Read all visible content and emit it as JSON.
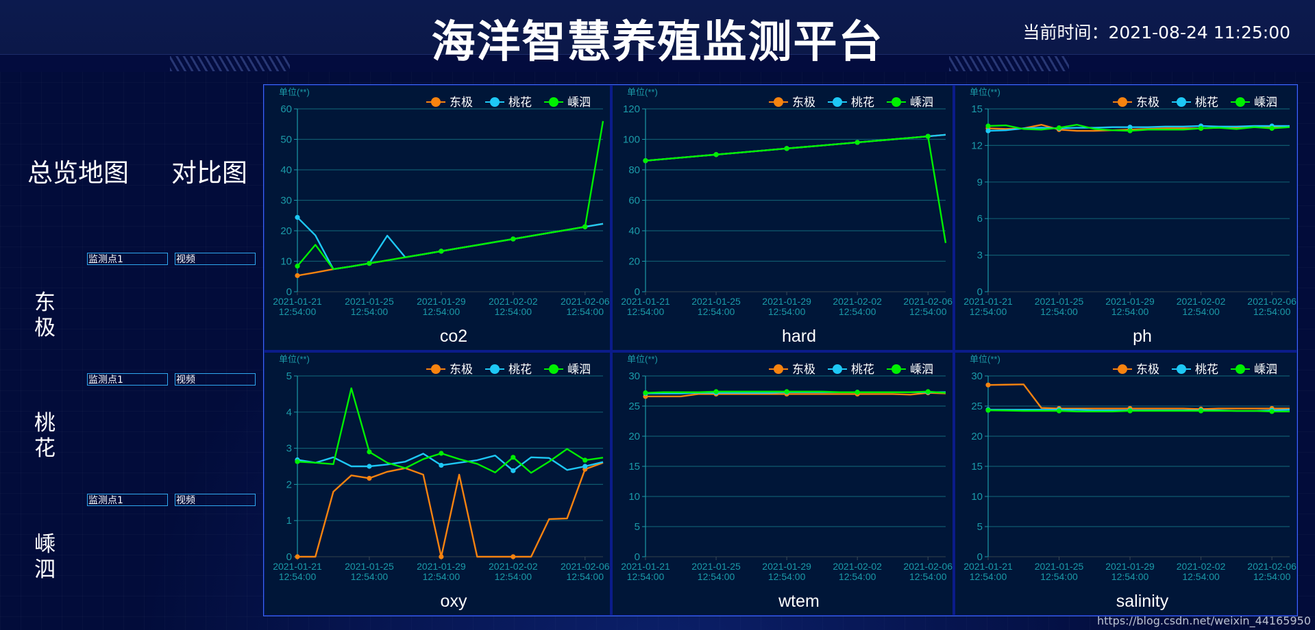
{
  "header": {
    "title": "海洋智慧养殖监测平台",
    "clock_label": "当前时间：",
    "clock_value": "2021-08-24 11:25:00"
  },
  "nav": {
    "map_label": "总览地图",
    "compare_label": "对比图"
  },
  "sites": [
    {
      "name": "东极",
      "point_label": "监测点1",
      "video_label": "视频"
    },
    {
      "name": "桃花",
      "point_label": "监测点1",
      "video_label": "视频"
    },
    {
      "name": "嵊泗",
      "point_label": "监测点1",
      "video_label": "视频"
    }
  ],
  "colors": {
    "东极": "#f7830f",
    "桃花": "#1ec8f5",
    "嵊泗": "#00f000",
    "axis_text": "#1b9aa8",
    "grid": "#0f5a6e",
    "panel_bg": "#001638",
    "frame_border": "#3d6cf0"
  },
  "watermark": "https://blog.csdn.net/weixin_44165950",
  "chart_data": [
    {
      "type": "line",
      "title": "co2",
      "unit_label": "单位(**)",
      "legend": [
        "东极",
        "桃花",
        "嵊泗"
      ],
      "legend_position": "top-right",
      "ylim": [
        0,
        60
      ],
      "yticks": [
        0,
        10,
        20,
        30,
        40,
        50,
        60
      ],
      "grid": true,
      "x_ticks": [
        "2021-01-21\n12:54:00",
        "2021-01-25\n12:54:00",
        "2021-01-29\n12:54:00",
        "2021-02-02\n12:54:00",
        "2021-02-06\n12:54:00"
      ],
      "x_tick_days": [
        0,
        4,
        8,
        12,
        16
      ],
      "x_days": 17,
      "series": [
        {
          "name": "东极",
          "values": [
            5.3,
            6.3,
            7.4,
            8.3,
            9.3,
            10.3,
            11.3,
            12.3,
            13.3,
            14.3,
            15.3,
            16.3,
            17.3,
            18.3,
            19.3,
            20.3,
            21.3,
            22.3
          ]
        },
        {
          "name": "桃花",
          "values": [
            24.4,
            18.5,
            7.4,
            8.3,
            9.3,
            18.4,
            11.3,
            12.3,
            13.3,
            14.3,
            15.3,
            16.3,
            17.3,
            18.3,
            19.3,
            20.3,
            21.3,
            22.3
          ]
        },
        {
          "name": "嵊泗",
          "values": [
            8.4,
            15.4,
            7.4,
            8.3,
            9.3,
            10.3,
            11.3,
            12.3,
            13.3,
            14.3,
            15.3,
            16.3,
            17.3,
            18.3,
            19.3,
            20.3,
            21.3,
            56
          ]
        }
      ]
    },
    {
      "type": "line",
      "title": "hard",
      "unit_label": "单位(**)",
      "legend": [
        "东极",
        "桃花",
        "嵊泗"
      ],
      "legend_position": "top-right",
      "ylim": [
        0,
        120
      ],
      "yticks": [
        0,
        20,
        40,
        60,
        80,
        100,
        120
      ],
      "grid": true,
      "x_ticks": [
        "2021-01-21\n12:54:00",
        "2021-01-25\n12:54:00",
        "2021-01-29\n12:54:00",
        "2021-02-02\n12:54:00",
        "2021-02-06\n12:54:00"
      ],
      "x_tick_days": [
        0,
        4,
        8,
        12,
        16
      ],
      "x_days": 17,
      "series": [
        {
          "name": "东极",
          "values": [
            86,
            87,
            88,
            89,
            90,
            91,
            92,
            93,
            94,
            95,
            96,
            97,
            98,
            99,
            100,
            101,
            102,
            103
          ]
        },
        {
          "name": "桃花",
          "values": [
            86,
            87,
            88,
            89,
            90,
            91,
            92,
            93,
            94,
            95,
            96,
            97,
            98,
            99,
            100,
            101,
            102,
            103
          ]
        },
        {
          "name": "嵊泗",
          "values": [
            86,
            87,
            88,
            89,
            90,
            91,
            92,
            93,
            94,
            95,
            96,
            97,
            98,
            99,
            100,
            101,
            102,
            32
          ]
        }
      ]
    },
    {
      "type": "line",
      "title": "ph",
      "unit_label": "单位(**)",
      "legend": [
        "东极",
        "桃花",
        "嵊泗"
      ],
      "legend_position": "top-right",
      "ylim": [
        0,
        15
      ],
      "yticks": [
        0,
        3,
        6,
        9,
        12,
        15
      ],
      "grid": true,
      "x_ticks": [
        "2021-01-21\n12:54:00",
        "2021-01-25\n12:54:00",
        "2021-01-29\n12:54:00",
        "2021-02-02\n12:54:00",
        "2021-02-06\n12:54:00"
      ],
      "x_tick_days": [
        0,
        4,
        8,
        12,
        16
      ],
      "x_days": 17,
      "series": [
        {
          "name": "东极",
          "values": [
            13.4,
            13.35,
            13.4,
            13.7,
            13.3,
            13.2,
            13.2,
            13.25,
            13.3,
            13.35,
            13.4,
            13.4,
            13.4,
            13.45,
            13.45,
            13.5,
            13.5,
            13.55
          ]
        },
        {
          "name": "桃花",
          "values": [
            13.2,
            13.25,
            13.4,
            13.45,
            13.4,
            13.45,
            13.45,
            13.5,
            13.5,
            13.5,
            13.55,
            13.55,
            13.6,
            13.55,
            13.55,
            13.6,
            13.6,
            13.6
          ]
        },
        {
          "name": "嵊泗",
          "values": [
            13.6,
            13.65,
            13.35,
            13.3,
            13.45,
            13.7,
            13.35,
            13.25,
            13.2,
            13.3,
            13.3,
            13.3,
            13.4,
            13.45,
            13.35,
            13.5,
            13.4,
            13.5
          ]
        }
      ]
    },
    {
      "type": "line",
      "title": "oxy",
      "unit_label": "单位(**)",
      "legend": [
        "东极",
        "桃花",
        "嵊泗"
      ],
      "legend_position": "top-right",
      "ylim": [
        0,
        5
      ],
      "yticks": [
        0,
        1,
        2,
        3,
        4,
        5
      ],
      "grid": true,
      "x_ticks": [
        "2021-01-21\n12:54:00",
        "2021-01-25\n12:54:00",
        "2021-01-29\n12:54:00",
        "2021-02-02\n12:54:00",
        "2021-02-06\n12:54:00"
      ],
      "x_tick_days": [
        0,
        4,
        8,
        12,
        16
      ],
      "x_days": 17,
      "series": [
        {
          "name": "东极",
          "values": [
            0,
            0,
            1.8,
            2.25,
            2.17,
            2.35,
            2.45,
            2.27,
            0,
            2.27,
            0,
            0,
            0,
            0,
            1.04,
            1.06,
            2.42,
            2.6
          ]
        },
        {
          "name": "桃花",
          "values": [
            2.68,
            2.6,
            2.75,
            2.5,
            2.5,
            2.55,
            2.63,
            2.85,
            2.53,
            2.6,
            2.67,
            2.8,
            2.38,
            2.75,
            2.73,
            2.4,
            2.5,
            2.62
          ]
        },
        {
          "name": "嵊泗",
          "values": [
            2.63,
            2.6,
            2.56,
            4.66,
            2.9,
            2.6,
            2.45,
            2.7,
            2.86,
            2.7,
            2.57,
            2.33,
            2.75,
            2.32,
            2.63,
            2.98,
            2.67,
            2.74
          ]
        }
      ]
    },
    {
      "type": "line",
      "title": "wtem",
      "unit_label": "单位(**)",
      "legend": [
        "东极",
        "桃花",
        "嵊泗"
      ],
      "legend_position": "top-right",
      "ylim": [
        0,
        30
      ],
      "yticks": [
        0,
        5,
        10,
        15,
        20,
        25,
        30
      ],
      "grid": true,
      "x_ticks": [
        "2021-01-21\n12:54:00",
        "2021-01-25\n12:54:00",
        "2021-01-29\n12:54:00",
        "2021-02-02\n12:54:00",
        "2021-02-06\n12:54:00"
      ],
      "x_tick_days": [
        0,
        4,
        8,
        12,
        16
      ],
      "x_days": 17,
      "series": [
        {
          "name": "东极",
          "values": [
            26.6,
            26.6,
            26.6,
            27.0,
            27.0,
            27.0,
            27.0,
            27.0,
            27.0,
            27.0,
            27.0,
            27.0,
            27.0,
            27.0,
            27.0,
            26.9,
            27.2,
            27.1
          ]
        },
        {
          "name": "桃花",
          "values": [
            27.1,
            27.1,
            27.1,
            27.2,
            27.2,
            27.2,
            27.2,
            27.2,
            27.3,
            27.3,
            27.3,
            27.3,
            27.3,
            27.3,
            27.3,
            27.3,
            27.3,
            27.3
          ]
        },
        {
          "name": "嵊泗",
          "values": [
            27.2,
            27.3,
            27.3,
            27.3,
            27.4,
            27.4,
            27.4,
            27.4,
            27.4,
            27.4,
            27.4,
            27.3,
            27.3,
            27.3,
            27.3,
            27.3,
            27.4,
            27.2
          ]
        }
      ]
    },
    {
      "type": "line",
      "title": "salinity",
      "unit_label": "单位(**)",
      "legend": [
        "东极",
        "桃花",
        "嵊泗"
      ],
      "legend_position": "top-right",
      "ylim": [
        0,
        30
      ],
      "yticks": [
        0,
        5,
        10,
        15,
        20,
        25,
        30
      ],
      "grid": true,
      "x_ticks": [
        "2021-01-21\n12:54:00",
        "2021-01-25\n12:54:00",
        "2021-01-29\n12:54:00",
        "2021-02-02\n12:54:00",
        "2021-02-06\n12:54:00"
      ],
      "x_tick_days": [
        0,
        4,
        8,
        12,
        16
      ],
      "x_days": 17,
      "series": [
        {
          "name": "东极",
          "values": [
            28.5,
            28.55,
            28.6,
            24.7,
            24.6,
            24.6,
            24.6,
            24.6,
            24.6,
            24.6,
            24.6,
            24.6,
            24.5,
            24.6,
            24.6,
            24.6,
            24.6,
            24.6
          ]
        },
        {
          "name": "桃花",
          "values": [
            24.4,
            24.4,
            24.4,
            24.4,
            24.4,
            24.4,
            24.3,
            24.3,
            24.3,
            24.3,
            24.3,
            24.3,
            24.3,
            24.3,
            24.2,
            24.2,
            24.3,
            24.4
          ]
        },
        {
          "name": "嵊泗",
          "values": [
            24.3,
            24.25,
            24.2,
            24.2,
            24.2,
            24.1,
            24.1,
            24.1,
            24.2,
            24.2,
            24.2,
            24.2,
            24.2,
            24.2,
            24.2,
            24.2,
            24.1,
            24.1
          ]
        }
      ]
    }
  ]
}
